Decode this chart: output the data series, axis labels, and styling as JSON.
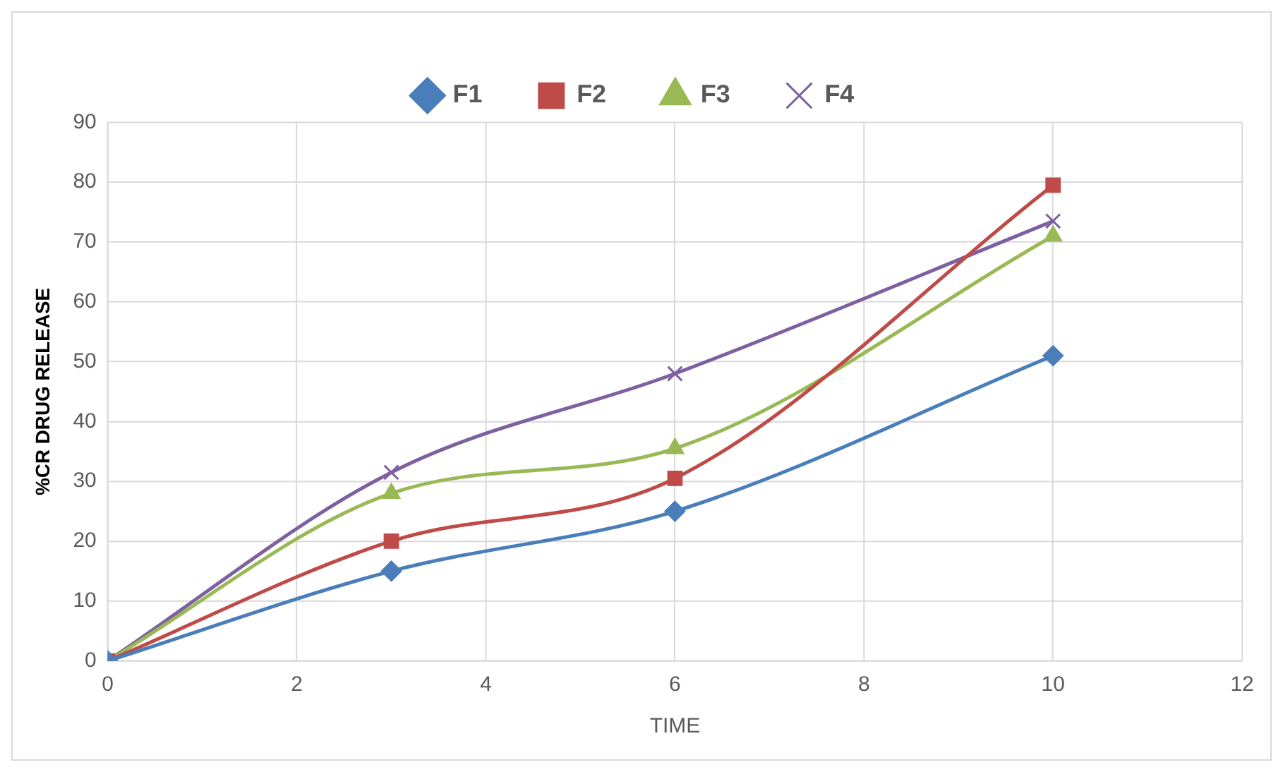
{
  "chart_data": {
    "type": "line",
    "xlabel": "TIME",
    "ylabel": "%CR DRUG RELEASE",
    "x": [
      0,
      3,
      6,
      10
    ],
    "series": [
      {
        "name": "F1",
        "color": "#4a7ebb",
        "marker": "diamond",
        "values": [
          0,
          15,
          25,
          51
        ]
      },
      {
        "name": "F2",
        "color": "#be4b48",
        "marker": "square",
        "values": [
          0,
          20,
          30.5,
          79.5
        ]
      },
      {
        "name": "F3",
        "color": "#98b954",
        "marker": "triangle",
        "values": [
          0,
          28,
          35.5,
          71
        ]
      },
      {
        "name": "F4",
        "color": "#7d60a0",
        "marker": "cross",
        "values": [
          0,
          31.5,
          48,
          73.5
        ]
      }
    ],
    "xlim": [
      0,
      12
    ],
    "xticks": [
      0,
      2,
      4,
      6,
      8,
      10,
      12
    ],
    "ylim": [
      0,
      90
    ],
    "yticks": [
      0,
      10,
      20,
      30,
      40,
      50,
      60,
      70,
      80,
      90
    ],
    "grid": true,
    "legend": "top"
  }
}
